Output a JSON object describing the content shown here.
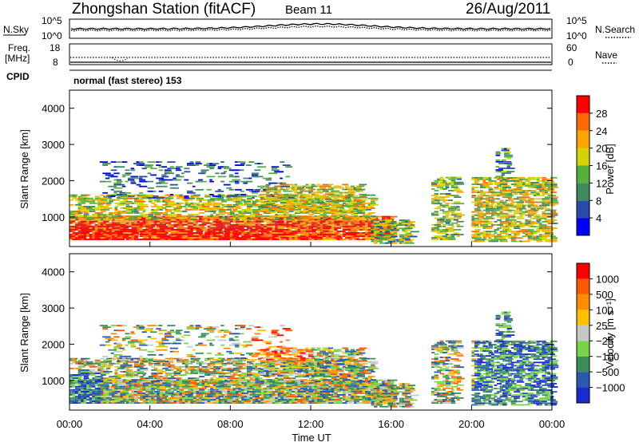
{
  "header": {
    "station": "Zhongshan Station (fitACF)",
    "beam": "Beam 11",
    "date": "26/Aug/2011"
  },
  "small_panels": {
    "nsky_label": "N.Sky",
    "nsearch_label": "N.Search",
    "noise_ticks": [
      "10^5",
      "10^0"
    ],
    "freq_label_line1": "Freq.",
    "freq_label_line2": "[MHz]",
    "freq_ticks": [
      "18",
      "8"
    ],
    "nave_label": "Nave",
    "nave_ticks": [
      "60",
      "0"
    ],
    "cpid_label": "CPID",
    "cpid_value": "normal (fast stereo) 153"
  },
  "colors": {
    "power_scale": [
      "#0000ff",
      "#2a4aa8",
      "#3f8a5e",
      "#55b13a",
      "#d4d400",
      "#ffa500",
      "#ff6a00",
      "#ff0000"
    ],
    "velocity_scale": [
      "#ff0000",
      "#ff5a00",
      "#ff8c00",
      "#ffc000",
      "#c8c8c8",
      "#7ad44a",
      "#3c8f5a",
      "#2a5ab0",
      "#1a2ad0"
    ]
  },
  "chart_data": [
    {
      "type": "heatmap",
      "name": "power",
      "ylabel": "Slant Range [km]",
      "yticks": [
        "1000",
        "2000",
        "3000",
        "4000"
      ],
      "ylim": [
        180,
        4500
      ],
      "xlim": [
        0,
        24
      ],
      "colorbar_label": "Power [dB]",
      "colorbar_ticks": [
        "4",
        "8",
        "12",
        "16",
        "20",
        "24",
        "28"
      ],
      "colorbar_range": [
        0,
        32
      ]
    },
    {
      "type": "heatmap",
      "name": "velocity",
      "ylabel": "Slant Range [km]",
      "yticks": [
        "1000",
        "2000",
        "3000",
        "4000"
      ],
      "ylim": [
        180,
        4500
      ],
      "xlim": [
        0,
        24
      ],
      "colorbar_label": "Velocity [m s⁻¹]",
      "colorbar_ticks": [
        "1000",
        "500",
        "100",
        "25",
        "−25",
        "−100",
        "−500",
        "−1000"
      ],
      "xlabel": "Time UT",
      "xticks": [
        "00:00",
        "04:00",
        "08:00",
        "12:00",
        "16:00",
        "20:00",
        "00:00"
      ]
    }
  ]
}
